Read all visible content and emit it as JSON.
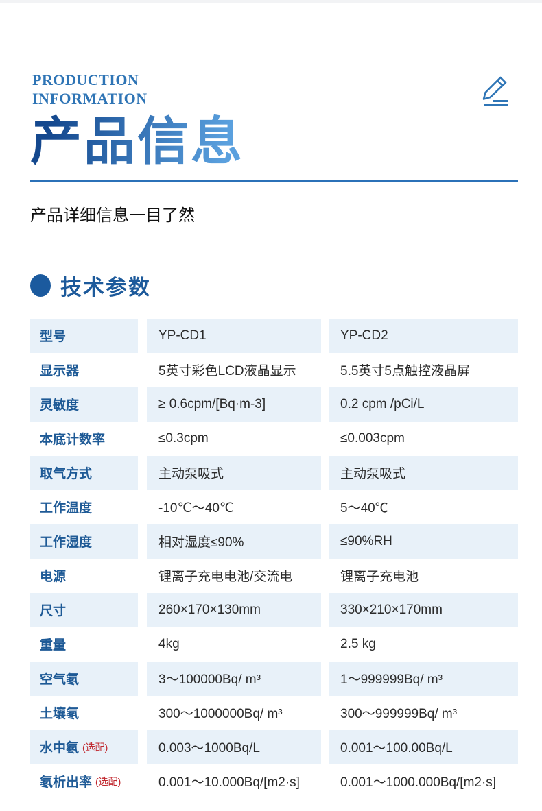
{
  "header": {
    "eyebrow_line1": "PRODUCTION",
    "eyebrow_line2": "INFORMATION",
    "title": "产品信息",
    "subtitle": "产品详细信息一目了然"
  },
  "section": {
    "heading": "技术参数"
  },
  "colors": {
    "accent_blue": "#2e74b5",
    "label_blue": "#1e5a96",
    "row_tint": "#e8f1f9",
    "optional_red": "#c0262d",
    "title_gradient_start": "#14488e",
    "title_gradient_end": "#5aa0de"
  },
  "table": {
    "rows": [
      {
        "label": "型号",
        "note": "",
        "cd1": "YP-CD1",
        "cd2": "YP-CD2"
      },
      {
        "label": "显示器",
        "note": "",
        "cd1": "5英寸彩色LCD液晶显示",
        "cd2": "5.5英寸5点触控液晶屏"
      },
      {
        "label": "灵敏度",
        "note": "",
        "cd1": "≥ 0.6cpm/[Bq·m-3]",
        "cd2": "0.2 cpm /pCi/L"
      },
      {
        "label": "本底计数率",
        "note": "",
        "cd1": "≤0.3cpm",
        "cd2": "≤0.003cpm"
      },
      {
        "label": "取气方式",
        "note": "",
        "cd1": "主动泵吸式",
        "cd2": "主动泵吸式"
      },
      {
        "label": "工作温度",
        "note": "",
        "cd1": "-10℃～40℃",
        "cd2": "5～40℃"
      },
      {
        "label": "工作湿度",
        "note": "",
        "cd1": "相对湿度≤90%",
        "cd2": "≤90%RH"
      },
      {
        "label": "电源",
        "note": "",
        "cd1": "锂离子充电电池/交流电",
        "cd2": "锂离子充电池"
      },
      {
        "label": "尺寸",
        "note": "",
        "cd1": "260×170×130mm",
        "cd2": "330×210×170mm"
      },
      {
        "label": "重量",
        "note": "",
        "cd1": "4kg",
        "cd2": "2.5 kg"
      },
      {
        "label": "空气氡",
        "note": "",
        "cd1": "3～100000Bq/ m³",
        "cd2": "1～999999Bq/ m³"
      },
      {
        "label": "土壤氡",
        "note": "",
        "cd1": "300～1000000Bq/ m³",
        "cd2": "300～999999Bq/ m³"
      },
      {
        "label": "水中氡",
        "note": "(选配)",
        "cd1": "0.003～1000Bq/L",
        "cd2": "0.001～100.00Bq/L"
      },
      {
        "label": "氡析出率",
        "note": "(选配)",
        "cd1": "0.001～10.000Bq/[m2·s]",
        "cd2": "0.001～1000.000Bq/[m2·s]"
      }
    ]
  }
}
